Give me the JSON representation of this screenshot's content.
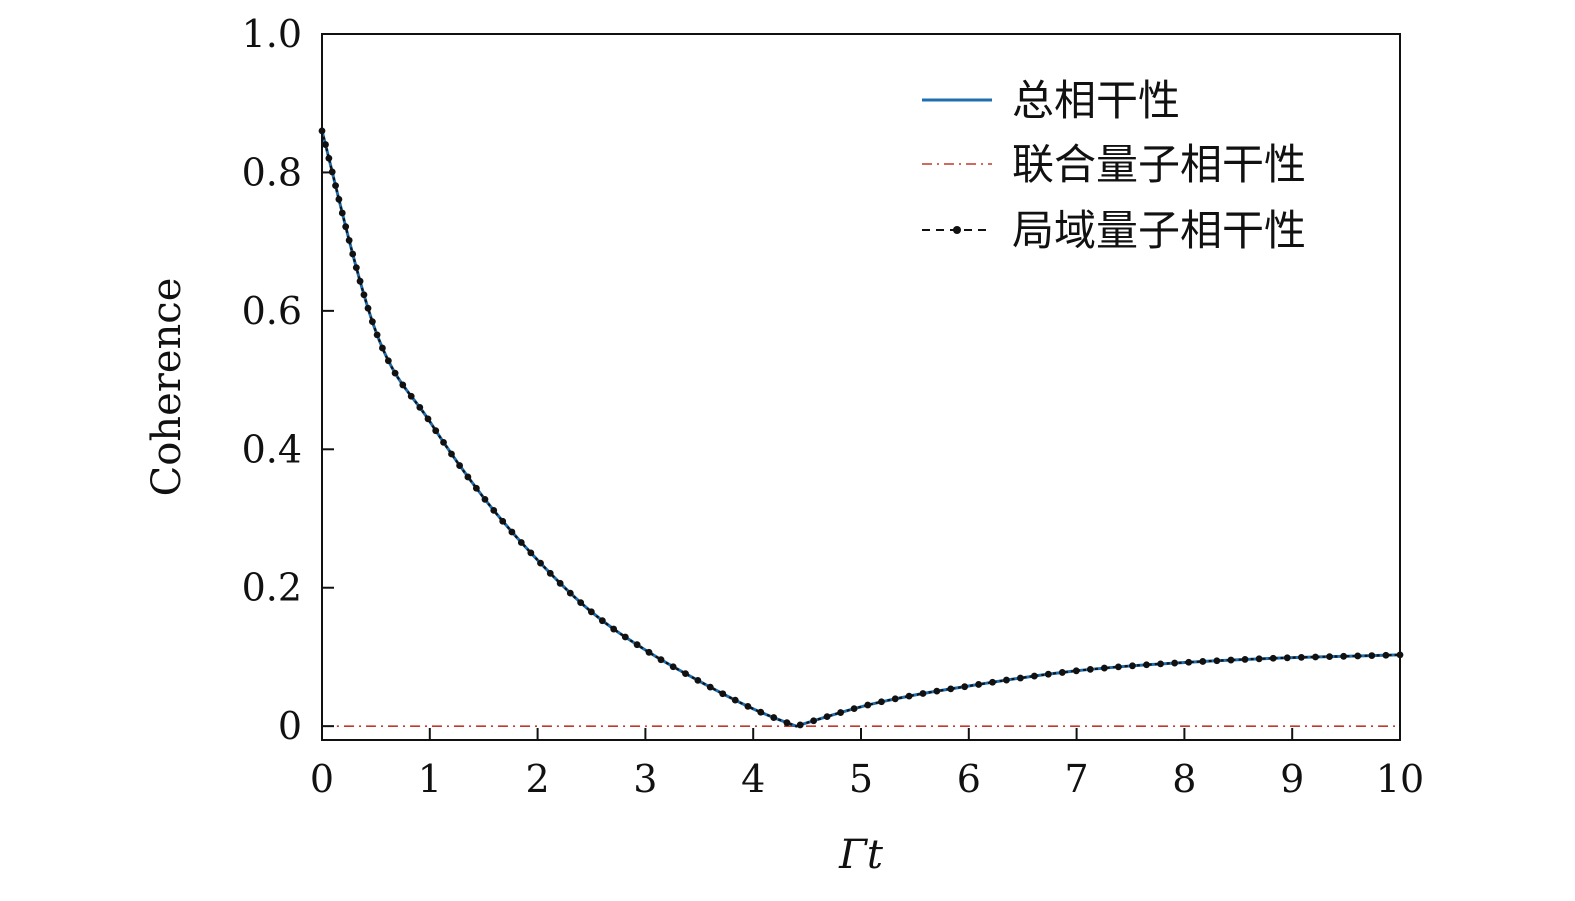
{
  "chart_data": {
    "type": "line",
    "xlabel": "Γt",
    "ylabel": "Coherence",
    "xlim": [
      0,
      10
    ],
    "ylim": [
      -0.02,
      1.0
    ],
    "x_ticks": [
      "0",
      "1",
      "2",
      "3",
      "4",
      "5",
      "6",
      "7",
      "8",
      "9",
      "10"
    ],
    "y_ticks": [
      "0",
      "0.2",
      "0.4",
      "0.6",
      "0.8",
      "1.0"
    ],
    "legend_position": "top-right",
    "x": [
      0,
      0.5,
      1,
      1.5,
      2,
      2.5,
      3,
      3.5,
      4,
      4.4,
      5,
      5.5,
      6,
      6.5,
      7,
      7.5,
      8,
      8.5,
      9,
      9.5,
      10
    ],
    "series": [
      {
        "name": "总相干性",
        "style": "solid",
        "color": "#1f6fb0",
        "values": [
          0.86,
          0.57,
          0.44,
          0.33,
          0.24,
          0.165,
          0.11,
          0.065,
          0.025,
          0.0,
          0.028,
          0.045,
          0.058,
          0.07,
          0.08,
          0.087,
          0.092,
          0.096,
          0.099,
          0.101,
          0.103
        ]
      },
      {
        "name": "联合量子相干性",
        "style": "dashdot",
        "color": "#c0392b",
        "values": [
          0,
          0,
          0,
          0,
          0,
          0,
          0,
          0,
          0,
          0,
          0,
          0,
          0,
          0,
          0,
          0,
          0,
          0,
          0,
          0,
          0
        ]
      },
      {
        "name": "局域量子相干性",
        "style": "dashed-dots",
        "color": "#111111",
        "values": [
          0.86,
          0.57,
          0.44,
          0.33,
          0.24,
          0.165,
          0.11,
          0.065,
          0.025,
          0.0,
          0.028,
          0.045,
          0.058,
          0.07,
          0.08,
          0.087,
          0.092,
          0.096,
          0.099,
          0.101,
          0.103
        ]
      }
    ]
  }
}
